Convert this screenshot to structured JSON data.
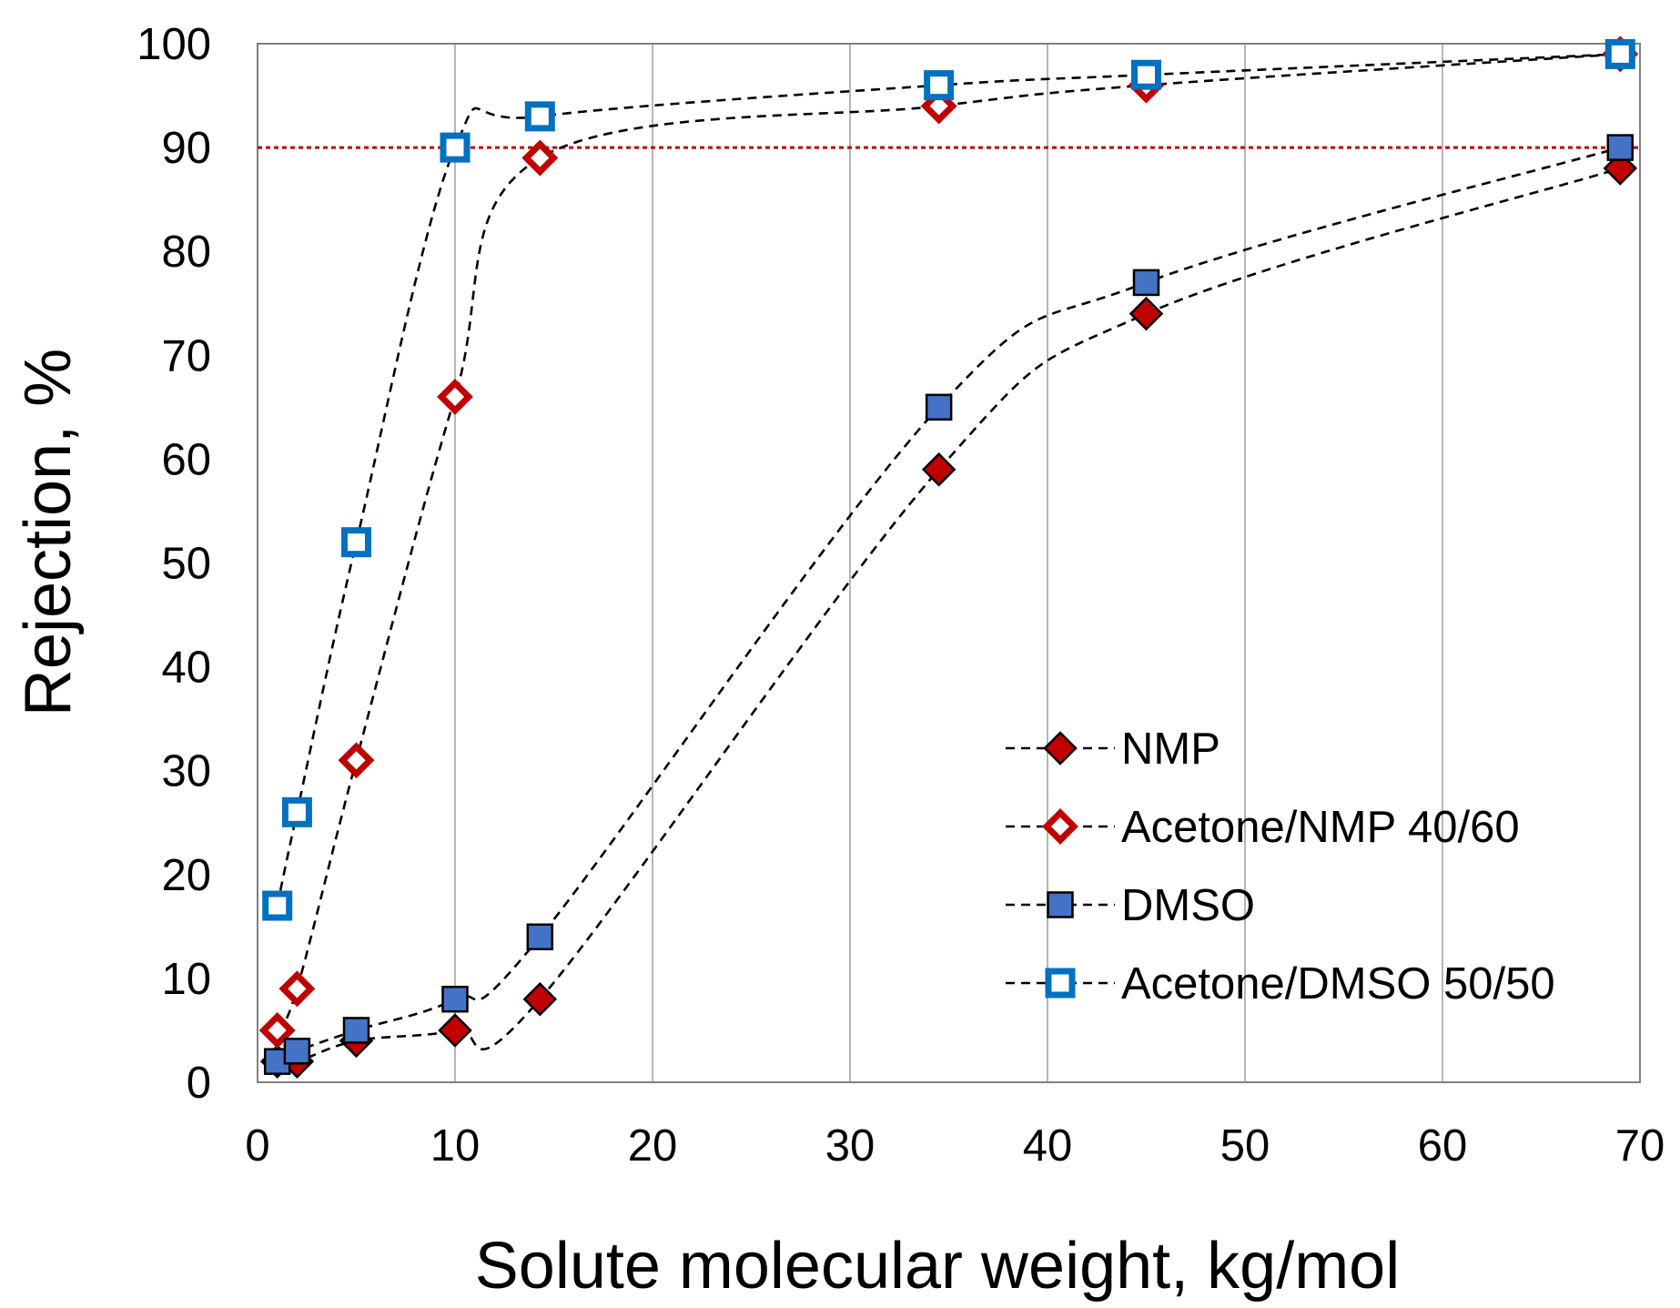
{
  "chart_data": {
    "type": "scatter",
    "title": "",
    "xlabel": "Solute molecular weight, kg/mol",
    "ylabel": "Rejection, %",
    "xlim": [
      0,
      70
    ],
    "ylim": [
      0,
      100
    ],
    "xticks": [
      0,
      10,
      20,
      30,
      40,
      50,
      60,
      70
    ],
    "yticks": [
      0,
      10,
      20,
      30,
      40,
      50,
      60,
      70,
      80,
      90,
      100
    ],
    "grid": "vertical",
    "legend_position": "right-center",
    "reference_line": {
      "y": 90,
      "color": "#c00000",
      "style": "dotted"
    },
    "series": [
      {
        "name": "NMP",
        "marker": "diamond-filled",
        "color": "#c00000",
        "line": "dashed",
        "x": [
          1,
          2,
          5,
          10,
          14.3,
          34.5,
          45,
          69
        ],
        "y": [
          2,
          2,
          4,
          5,
          8,
          59,
          74,
          88
        ]
      },
      {
        "name": "Acetone/NMP 40/60",
        "marker": "diamond-open",
        "color": "#c00000",
        "line": "dashed",
        "x": [
          1,
          2,
          5,
          10,
          14.3,
          34.5,
          45,
          69
        ],
        "y": [
          5,
          9,
          31,
          66,
          89,
          94,
          96,
          99
        ]
      },
      {
        "name": "DMSO",
        "marker": "square-filled",
        "color": "#4472c4",
        "line": "dashed",
        "x": [
          1,
          2,
          5,
          10,
          14.3,
          34.5,
          45,
          69
        ],
        "y": [
          2,
          3,
          5,
          8,
          14,
          65,
          77,
          90
        ]
      },
      {
        "name": "Acetone/DMSO 50/50",
        "marker": "square-open",
        "color": "#0070c0",
        "line": "dashed",
        "x": [
          1,
          2,
          5,
          10,
          14.3,
          34.5,
          45,
          69
        ],
        "y": [
          17,
          26,
          52,
          90,
          93,
          96,
          97,
          99
        ]
      }
    ]
  }
}
